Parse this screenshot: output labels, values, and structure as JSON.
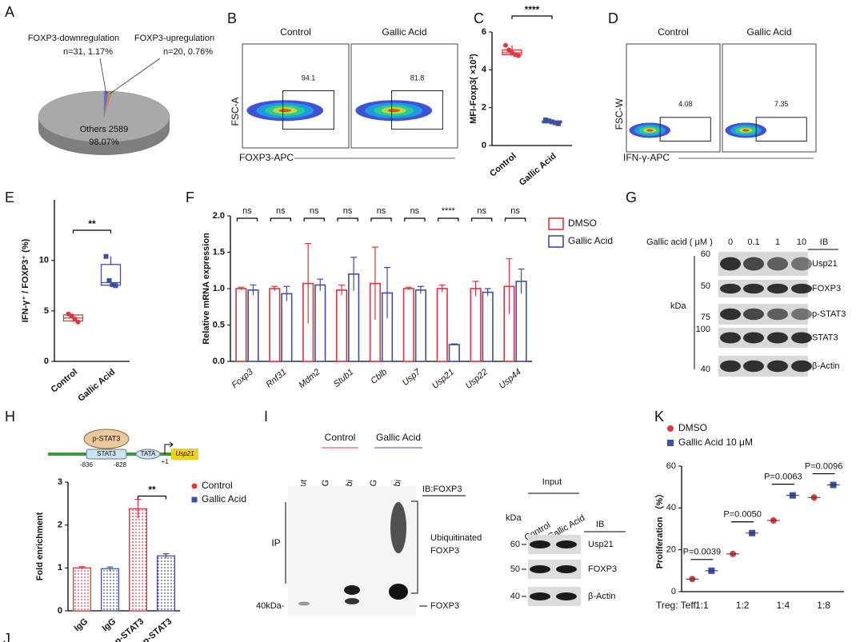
{
  "panel_labels": [
    "A",
    "B",
    "C",
    "D",
    "E",
    "F",
    "G",
    "H",
    "I",
    "K",
    "J"
  ],
  "chart_data": [
    {
      "type": "pie",
      "categories": [
        "FOXP3-downregulation",
        "FOXP3-upregulation",
        "Others 2589"
      ],
      "values": [
        1.17,
        0.76,
        98.07
      ],
      "value_labels": [
        "n=31, 1.17%",
        "n=20, 0.76%",
        "98.07%"
      ],
      "colors": [
        "#6b6fc7",
        "#e8863a",
        "#a9a9a9"
      ]
    },
    {
      "type": "box",
      "y_label": "MFI-Foxp3( ×10³)",
      "categories": [
        "Control",
        "Gallic Acid"
      ],
      "colors": [
        "#e0363f",
        "#3d4ea3"
      ],
      "points": [
        [
          5.3,
          5.05,
          4.9,
          4.8,
          4.75
        ],
        [
          1.35,
          1.3,
          1.25,
          1.2,
          1.15
        ]
      ],
      "box": [
        [
          4.75,
          4.8,
          4.9,
          5.05,
          5.3
        ],
        [
          1.15,
          1.2,
          1.25,
          1.3,
          1.35
        ]
      ],
      "ylim": [
        0,
        6
      ],
      "yticks": [
        0,
        2,
        4,
        6
      ],
      "annotation": "****"
    },
    {
      "type": "box",
      "y_label": "IFN-γ⁺ / FOXP3⁺ (%)",
      "categories": [
        "Control",
        "Gallic Acid"
      ],
      "colors": [
        "#e0363f",
        "#3d4ea3"
      ],
      "points": [
        [
          4.7,
          4.5,
          4.2,
          3.9
        ],
        [
          10.4,
          8.0,
          7.6,
          7.5
        ]
      ],
      "box": [
        [
          3.9,
          4.0,
          4.3,
          4.6,
          4.7
        ],
        [
          7.5,
          7.55,
          7.8,
          9.6,
          10.4
        ]
      ],
      "ylim": [
        0,
        16
      ],
      "yticks": [
        0,
        5,
        10
      ],
      "annotation": "**"
    },
    {
      "type": "bar",
      "y_label": "Relative mRNA expression",
      "categories": [
        "Foxp3",
        "Rnf31",
        "Mdm2",
        "Stub1",
        "Cblb",
        "Usp7",
        "Usp21",
        "Usp22",
        "Usp44"
      ],
      "series": [
        {
          "name": "DMSO",
          "color": "#d9363e",
          "values": [
            1.0,
            1.0,
            1.07,
            0.98,
            1.07,
            1.0,
            1.0,
            1.0,
            1.03
          ],
          "errors": [
            0.02,
            0.03,
            0.55,
            0.07,
            0.5,
            0.02,
            0.05,
            0.1,
            0.38
          ]
        },
        {
          "name": "Gallic Acid",
          "color": "#3d4ea3",
          "values": [
            0.98,
            0.93,
            1.05,
            1.2,
            0.94,
            0.98,
            0.23,
            0.95,
            1.1
          ],
          "errors": [
            0.07,
            0.1,
            0.08,
            0.23,
            0.35,
            0.05,
            0.01,
            0.05,
            0.17
          ]
        }
      ],
      "annotations": [
        "ns",
        "ns",
        "ns",
        "ns",
        "ns",
        "ns",
        "****",
        "ns",
        "ns"
      ],
      "ylim": [
        0,
        2.0
      ],
      "yticks": [
        {
          "value": 0,
          "label": "0.0"
        },
        {
          "value": 0.5,
          "label": "0.5"
        },
        {
          "value": 1,
          "label": "1.0"
        },
        {
          "value": 1.5,
          "label": "1.5"
        },
        {
          "value": 2,
          "label": "2.0"
        }
      ]
    },
    {
      "type": "bar",
      "y_label": "Fold enrichment",
      "categories": [
        "IgG",
        "IgG",
        "p-STAT3",
        "p-STAT3"
      ],
      "values": [
        1.0,
        0.98,
        2.38,
        1.28
      ],
      "errors": [
        0.03,
        0.04,
        0.22,
        0.05
      ],
      "bar_colors": [
        "#e0363f",
        "#3d4ea3",
        "#e0363f",
        "#3d4ea3"
      ],
      "legend": [
        {
          "name": "Control",
          "color": "#e0363f"
        },
        {
          "name": "Gallic Acid",
          "color": "#3d4ea3"
        }
      ],
      "annotation": "**",
      "ylim": [
        0,
        3
      ],
      "yticks": [
        0,
        1,
        2,
        3
      ]
    },
    {
      "type": "dot",
      "y_label": "Proliferation （%）",
      "x_label": "Treg: Teff",
      "categories": [
        "1:1",
        "1:2",
        "1:4",
        "1:8"
      ],
      "series": [
        {
          "name": "DMSO",
          "color": "#e0363f",
          "values": [
            6,
            18,
            34,
            45
          ]
        },
        {
          "name": "Gallic Acid 10 μM",
          "color": "#3d4ea3",
          "values": [
            10,
            28,
            46,
            51
          ]
        }
      ],
      "p_values": [
        "P=0.0039",
        "P=0.0050",
        "P=0.0063",
        "P=0.0096"
      ],
      "ylim": [
        0,
        60
      ],
      "yticks": [
        0,
        20,
        40,
        60
      ]
    }
  ],
  "flow_B": {
    "titles": [
      "Control",
      "Gallic Acid"
    ],
    "gate_values": [
      94.1,
      81.8
    ],
    "y_label": "FSC-A",
    "x_label": "FOXP3-APC"
  },
  "flow_D": {
    "titles": [
      "Control",
      "Gallic Acid"
    ],
    "gate_values": [
      4.08,
      7.35
    ],
    "y_label": "FSC-W",
    "x_label": "IFN-γ-APC"
  },
  "blot_G": {
    "treatment_label": "Gallic acid ( μM )",
    "doses": [
      0,
      0.1,
      1,
      10
    ],
    "ib_header": "IB",
    "proteins": [
      "Usp21",
      "FOXP3",
      "p-STAT3",
      "STAT3",
      "β-Actin"
    ],
    "kda_unit": "kDa",
    "markers": [
      60,
      50,
      75,
      100,
      40
    ]
  },
  "diagram_H": {
    "factor": "p-STAT3",
    "site": "STAT3",
    "positions": [
      -836,
      -828
    ],
    "tata": "TATA",
    "tss": "+1",
    "gene": "Usp21"
  },
  "blot_I": {
    "groups": [
      "Control",
      "Gallic Acid"
    ],
    "lanes": [
      "Input",
      "IgG",
      "Anti-Ubi",
      "IgG",
      "Anti-Ubi"
    ],
    "ib": "IB:FOXP3",
    "ip": "IP",
    "marker": "40kDa-",
    "ubiquitinated": [
      "Ubiquitinated",
      "FOXP3"
    ],
    "band": "FOXP3",
    "input_header": "Input",
    "kda_unit": "kDa",
    "input_groups": [
      "Control",
      "Gallic Acid"
    ],
    "ib_header": "IB",
    "markers": [
      60,
      50,
      40
    ],
    "proteins": [
      "Usp21",
      "FOXP3",
      "β-Actin"
    ]
  }
}
